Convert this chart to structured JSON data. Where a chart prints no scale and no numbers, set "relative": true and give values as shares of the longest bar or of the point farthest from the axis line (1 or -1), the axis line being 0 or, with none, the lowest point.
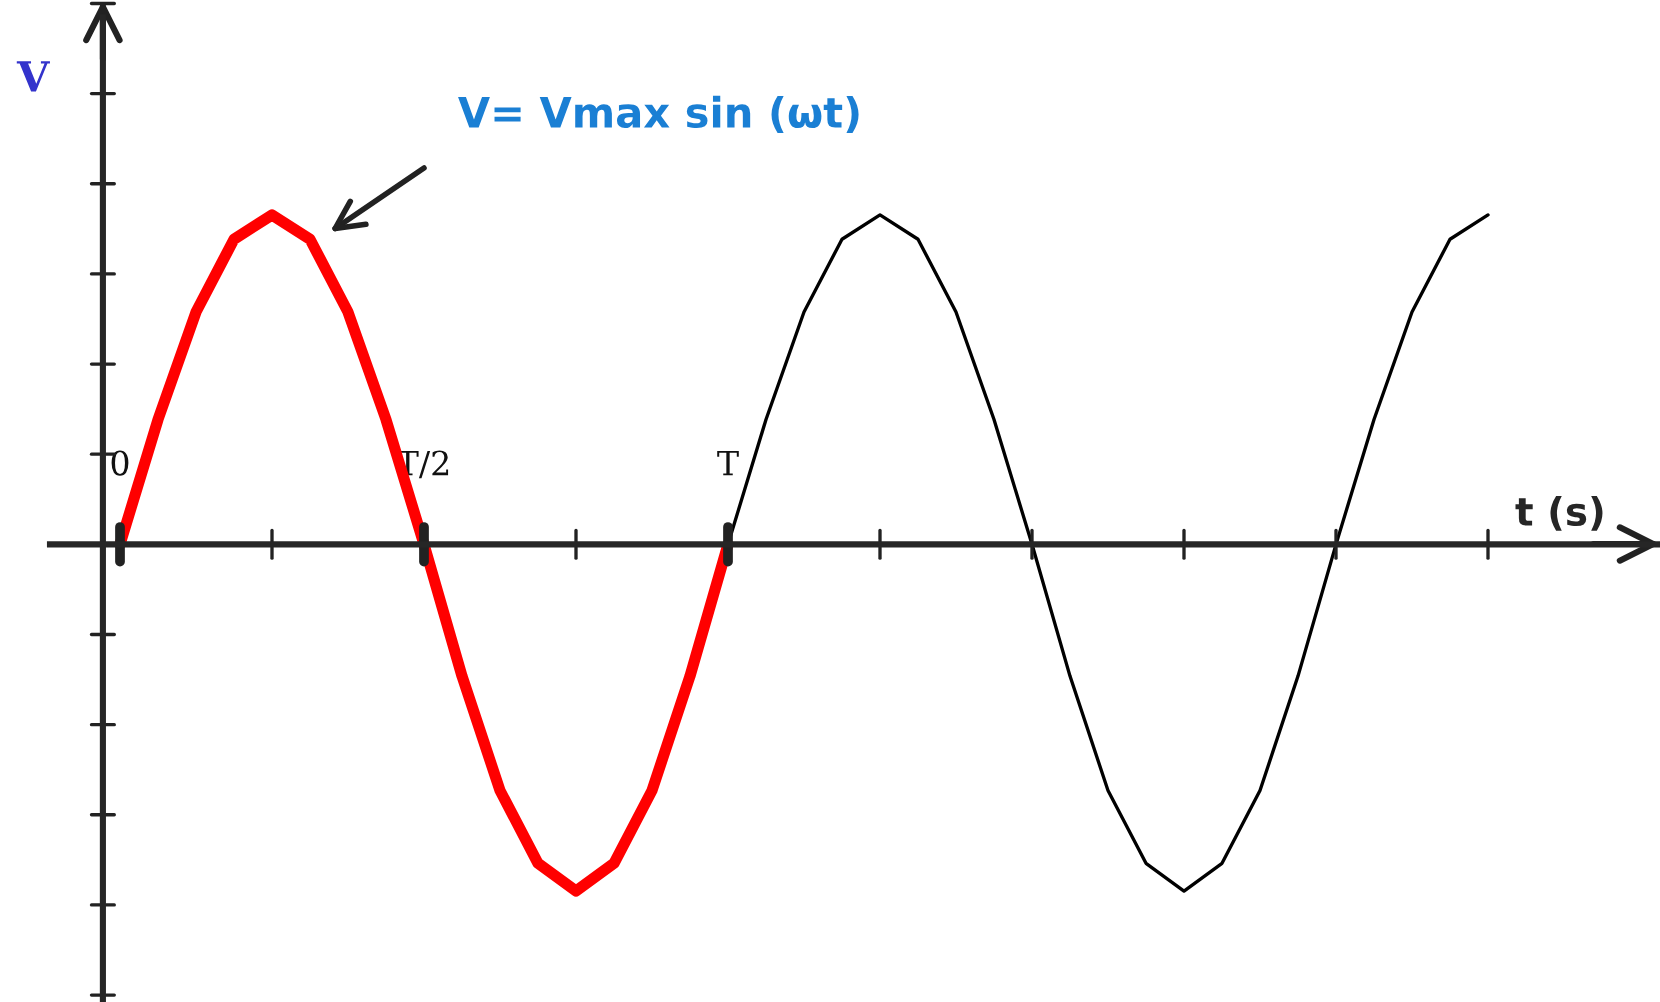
{
  "chart_data": {
    "type": "line",
    "relative": true,
    "xlabel": "t (s)",
    "ylabel": "V",
    "categories": [
      "0",
      null,
      null,
      null,
      null,
      null,
      null,
      null,
      "T/2",
      null,
      null,
      null,
      null,
      null,
      null,
      null,
      "T",
      null,
      null,
      null,
      null,
      null,
      null,
      null,
      null,
      null,
      null,
      null,
      null,
      null,
      null,
      null,
      null,
      null,
      null,
      null,
      null
    ],
    "series": [
      {
        "color": "#ff0000",
        "values": [
          0,
          0.36,
          0.67,
          0.88,
          0.95,
          0.88,
          0.67,
          0.36,
          0,
          -0.38,
          -0.71,
          -0.92,
          -1,
          -0.92,
          -0.71,
          -0.38,
          0,
          null,
          null,
          null,
          null,
          null,
          null,
          null,
          null,
          null,
          null,
          null,
          null,
          null,
          null,
          null,
          null,
          null,
          null,
          null,
          null
        ]
      },
      {
        "color": "#000000",
        "values": [
          null,
          null,
          null,
          null,
          null,
          null,
          null,
          null,
          null,
          null,
          null,
          null,
          null,
          null,
          null,
          null,
          0,
          0.36,
          0.67,
          0.88,
          0.95,
          0.88,
          0.67,
          0.36,
          0,
          -0.38,
          -0.71,
          -0.92,
          -1,
          -0.92,
          -0.71,
          -0.38,
          0,
          0.36,
          0.67,
          0.88,
          0.95
        ]
      }
    ],
    "annotations": [
      "V= Vmax sin (ωt)"
    ],
    "grid": false
  }
}
